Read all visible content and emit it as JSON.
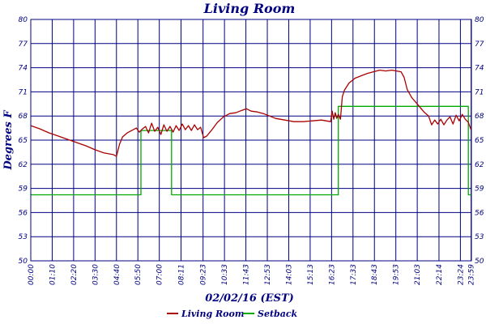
{
  "chart_data": {
    "type": "line",
    "title": "Living Room",
    "xlabel": "02/02/16 (EST)",
    "ylabel": "Degrees F",
    "ylim": [
      50,
      80
    ],
    "xlim_minutes": [
      0,
      1440
    ],
    "y_ticks": [
      50,
      53,
      56,
      59,
      62,
      65,
      68,
      71,
      74,
      77,
      80
    ],
    "y_tick_labels": [
      "50",
      "53",
      "56",
      "59",
      "62",
      "65",
      "68",
      "71",
      "74",
      "77",
      "80"
    ],
    "x_tick_labels": [
      "00:00",
      "01:10",
      "02:20",
      "03:30",
      "04:40",
      "05:50",
      "07:00",
      "08:11",
      "09:23",
      "10:33",
      "11:43",
      "12:53",
      "14:03",
      "15:13",
      "16:23",
      "17:33",
      "18:43",
      "19:53",
      "21:03",
      "22:14",
      "23:24",
      "23:59"
    ],
    "x_tick_minutes": [
      0,
      70,
      140,
      210,
      280,
      350,
      420,
      491,
      563,
      633,
      703,
      773,
      843,
      913,
      983,
      1053,
      1123,
      1193,
      1263,
      1334,
      1404,
      1439
    ],
    "grid": true,
    "legend_position": "bottom",
    "series": [
      {
        "name": "Living Room",
        "color": "#aa0000",
        "x": [
          0,
          30,
          60,
          90,
          120,
          150,
          180,
          210,
          240,
          270,
          280,
          290,
          300,
          315,
          330,
          345,
          355,
          365,
          375,
          385,
          395,
          405,
          415,
          425,
          435,
          445,
          455,
          465,
          475,
          485,
          495,
          505,
          515,
          525,
          535,
          545,
          555,
          565,
          575,
          590,
          610,
          630,
          650,
          670,
          690,
          705,
          720,
          740,
          760,
          780,
          800,
          830,
          860,
          890,
          920,
          950,
          980,
          985,
          990,
          995,
          1000,
          1005,
          1012,
          1018,
          1025,
          1040,
          1060,
          1080,
          1100,
          1120,
          1140,
          1160,
          1180,
          1195,
          1210,
          1220,
          1230,
          1245,
          1265,
          1285,
          1300,
          1310,
          1320,
          1330,
          1340,
          1350,
          1360,
          1370,
          1380,
          1390,
          1400,
          1410,
          1420,
          1430,
          1439
        ],
        "values": [
          66.8,
          66.4,
          65.9,
          65.5,
          65.1,
          64.7,
          64.3,
          63.8,
          63.4,
          63.2,
          63.0,
          64.5,
          65.4,
          65.9,
          66.2,
          66.5,
          66.0,
          66.4,
          66.7,
          65.9,
          67.1,
          66.1,
          66.6,
          65.7,
          66.9,
          66.1,
          66.7,
          66.0,
          66.8,
          66.2,
          67.0,
          66.3,
          66.8,
          66.2,
          66.9,
          66.3,
          66.6,
          65.3,
          65.5,
          66.2,
          67.2,
          67.9,
          68.3,
          68.4,
          68.7,
          68.9,
          68.6,
          68.5,
          68.3,
          68.0,
          67.7,
          67.5,
          67.3,
          67.3,
          67.4,
          67.5,
          67.3,
          68.6,
          67.6,
          68.4,
          67.7,
          68.2,
          67.6,
          70.4,
          71.2,
          72.1,
          72.7,
          73.0,
          73.3,
          73.5,
          73.7,
          73.6,
          73.7,
          73.6,
          73.5,
          72.8,
          71.3,
          70.3,
          69.4,
          68.5,
          68.0,
          66.9,
          67.5,
          67.0,
          67.6,
          66.9,
          67.5,
          67.9,
          67.0,
          68.1,
          67.4,
          68.2,
          67.6,
          67.2,
          66.3
        ]
      },
      {
        "name": "Setback",
        "color": "#00aa00",
        "x": [
          0,
          360,
          360,
          460,
          460,
          1005,
          1005,
          1430,
          1430,
          1439
        ],
        "values": [
          58.2,
          58.2,
          66.2,
          66.2,
          58.2,
          58.2,
          69.2,
          69.2,
          58.2,
          58.2
        ]
      }
    ]
  }
}
